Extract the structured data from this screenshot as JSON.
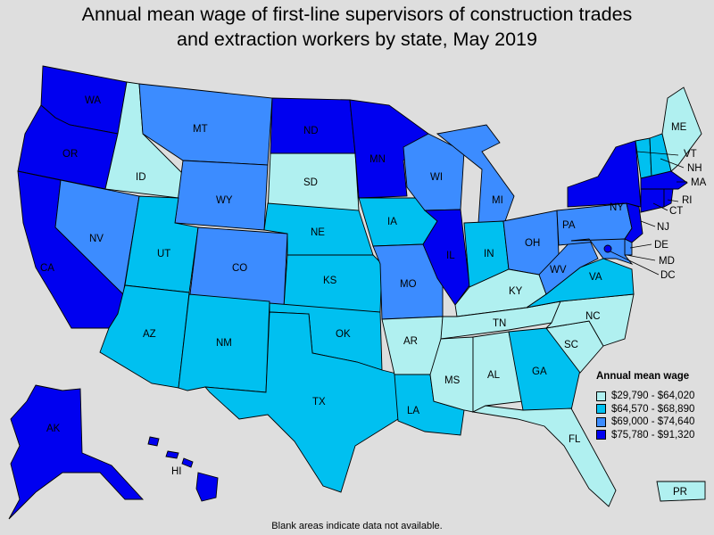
{
  "title_line1": "Annual mean wage of first-line supervisors of construction trades",
  "title_line2": "and extraction workers by state, May 2019",
  "legend": {
    "title": "Annual mean wage",
    "bins": [
      {
        "label": "$29,790 - $64,020",
        "color": "#b0f0f0"
      },
      {
        "label": "$64,570 - $68,890",
        "color": "#00c0f0"
      },
      {
        "label": "$69,000 - $74,640",
        "color": "#3c8cff"
      },
      {
        "label": "$75,780 - $91,320",
        "color": "#0000f0"
      }
    ]
  },
  "footnote": "Blank areas indicate data not available.",
  "states": {
    "WA": 3,
    "OR": 3,
    "CA": 3,
    "NV": 2,
    "ID": 0,
    "MT": 2,
    "WY": 2,
    "UT": 1,
    "AZ": 1,
    "CO": 2,
    "NM": 1,
    "ND": 3,
    "SD": 0,
    "NE": 1,
    "KS": 1,
    "OK": 1,
    "TX": 1,
    "MN": 3,
    "IA": 1,
    "MO": 2,
    "AR": 0,
    "LA": 1,
    "WI": 2,
    "IL": 3,
    "MI": 2,
    "IN": 1,
    "OH": 2,
    "KY": 0,
    "TN": 0,
    "MS": 0,
    "AL": 0,
    "GA": 1,
    "FL": 0,
    "SC": 0,
    "NC": 0,
    "VA": 1,
    "WV": 2,
    "PA": 2,
    "NY": 3,
    "NJ": 3,
    "DE": 2,
    "MD": 2,
    "DC": 3,
    "ME": 0,
    "NH": 1,
    "VT": 1,
    "MA": 3,
    "CT": 3,
    "RI": 3,
    "AK": 3,
    "HI": 3,
    "PR": 0
  }
}
